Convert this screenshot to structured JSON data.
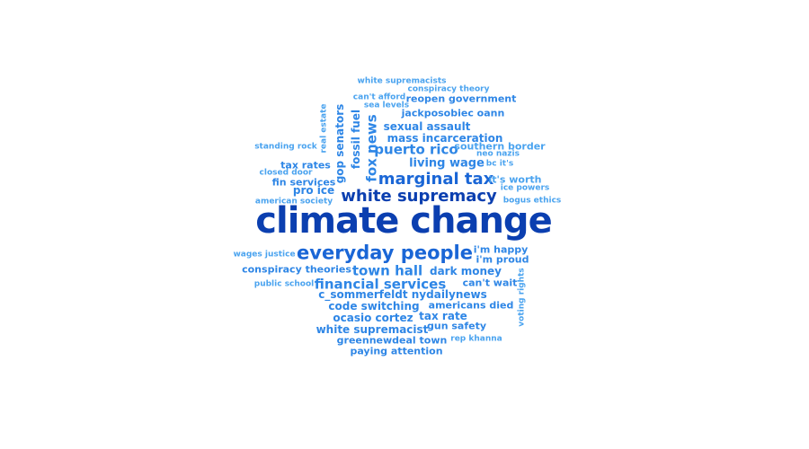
{
  "colors": {
    "background": "#ffffff",
    "darkest": "#0b3fb0",
    "dark": "#1a66d6",
    "medium": "#2e86e6",
    "light": "#4aa3ef"
  },
  "words": {
    "climate_change": "climate change",
    "everyday_people": "everyday people",
    "marginal_tax": "marginal tax",
    "white_supremacy": "white supremacy",
    "town_hall": "town hall",
    "financial_services": "financial services",
    "fox_news": "fox news",
    "puerto_rico": "puerto rico",
    "living_wage": "living wage",
    "sexual_assault": "sexual assault",
    "mass_incarceration": "mass incarceration",
    "reopen_government": "reopen government",
    "jackposobiec_oann": "jackposobiec oann",
    "white_supremacists": "white supremacists",
    "conspiracy_theory": "conspiracy theory",
    "cant_afford": "can't afford",
    "sea_levels": "sea levels",
    "southern_border": "southern border",
    "neo_nazis": "neo nazis",
    "bc_its": "bc it's",
    "its_worth": "it's worth",
    "ice_powers": "ice powers",
    "bogus_ethics": "bogus ethics",
    "standing_rock": "standing rock",
    "closed_door": "closed door",
    "tax_rates": "tax rates",
    "fin_services": "fin services",
    "pro_ice": "pro ice",
    "american_society": "american society",
    "real_estate": "real estate",
    "gop_senators": "gop senators",
    "fossil_fuel": "fossil fuel",
    "wages_justice": "wages justice",
    "conspiracy_theories": "conspiracy theories",
    "public_school": "public school",
    "c_sommerfeldt_nydailynews": "c_sommerfeldt nydailynews",
    "code_switching": "code switching",
    "ocasio_cortez": "ocasio cortez",
    "white_supremacist": "white supremacist",
    "greennewdeal_town": "greennewdeal town",
    "paying_attention": "paying attention",
    "dark_money": "dark money",
    "cant_wait": "can't wait",
    "americans_died": "americans died",
    "tax_rate": "tax rate",
    "gun_safety": "gun safety",
    "rep_khanna": "rep khanna",
    "im_happy": "i'm happy",
    "im_proud": "i'm proud",
    "voting_rights": "voting rights"
  }
}
